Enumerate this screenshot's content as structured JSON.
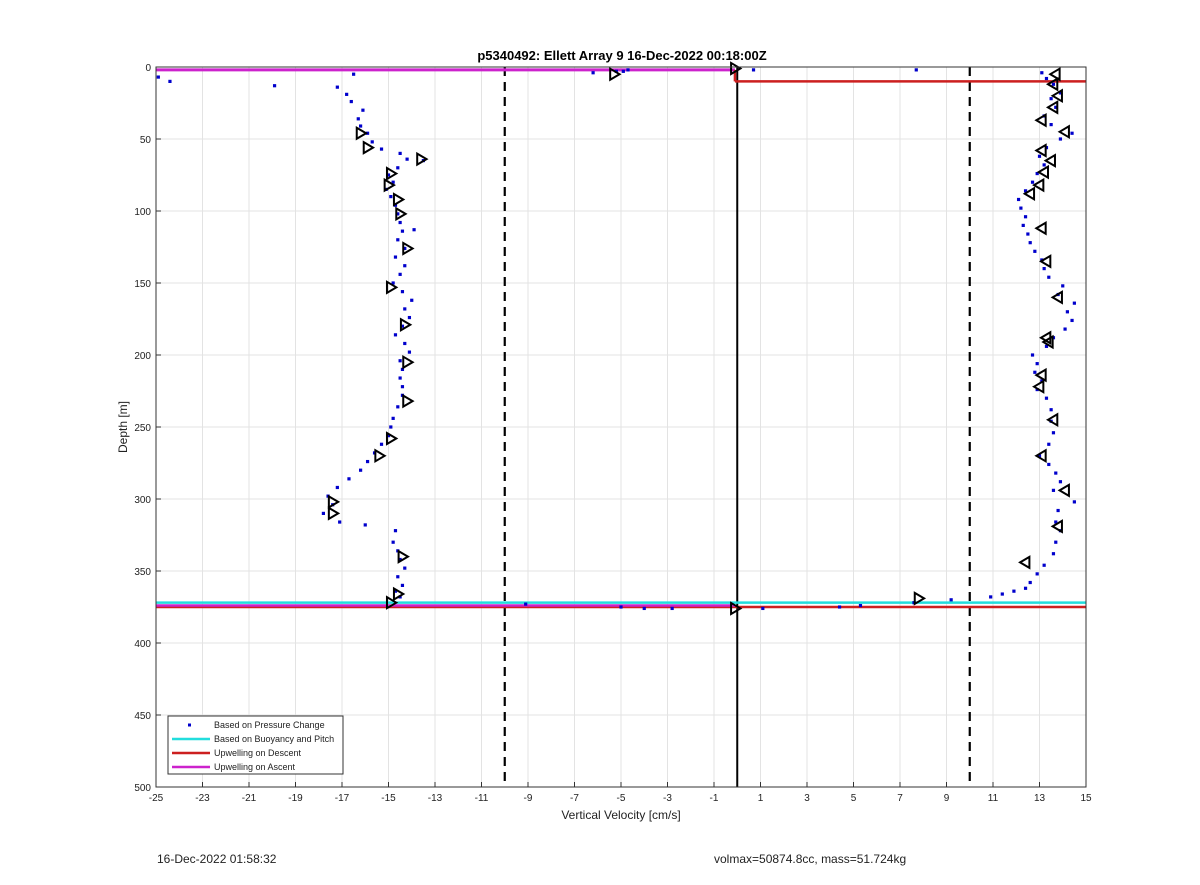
{
  "chart_data": {
    "type": "scatter",
    "title": "p5340492: Ellett Array 9 16-Dec-2022 00:18:00Z",
    "xlabel": "Vertical Velocity [cm/s]",
    "ylabel": "Depth [m]",
    "xlim": [
      -25,
      15
    ],
    "ylim": [
      0,
      500
    ],
    "y_reversed": true,
    "grid": true,
    "legend_position": "bottom-left",
    "xticks": [
      -25,
      -23,
      -21,
      -19,
      -17,
      -15,
      -13,
      -11,
      -9,
      -7,
      -5,
      -3,
      -1,
      1,
      3,
      5,
      7,
      9,
      11,
      13,
      15
    ],
    "yticks": [
      0,
      50,
      100,
      150,
      200,
      250,
      300,
      350,
      400,
      450,
      500
    ],
    "legend": [
      {
        "name": "Based on Pressure Change",
        "color": "#0000cc",
        "style": "dot"
      },
      {
        "name": "Based on Buoyancy and Pitch",
        "color": "#22dddd",
        "style": "line"
      },
      {
        "name": "Upwelling on Descent",
        "color": "#cc1f1f",
        "style": "line"
      },
      {
        "name": "Upwelling on Ascent",
        "color": "#cc22cc",
        "style": "line"
      }
    ],
    "reference_lines": [
      {
        "x": -10,
        "style": "dashed",
        "color": "#000000"
      },
      {
        "x": 10,
        "style": "dashed",
        "color": "#000000"
      },
      {
        "x": 0,
        "style": "solid",
        "color": "#000000"
      }
    ],
    "descent_points": [
      [
        -16.5,
        5
      ],
      [
        -17.2,
        14
      ],
      [
        -16.8,
        19
      ],
      [
        -16.6,
        24
      ],
      [
        -16.1,
        30
      ],
      [
        -16.3,
        36
      ],
      [
        -16.2,
        41
      ],
      [
        -15.9,
        46
      ],
      [
        -15.7,
        52
      ],
      [
        -15.3,
        57
      ],
      [
        -14.5,
        60
      ],
      [
        -14.2,
        64
      ],
      [
        -13.5,
        65
      ],
      [
        -14.6,
        70
      ],
      [
        -15.0,
        75
      ],
      [
        -14.8,
        80
      ],
      [
        -15.1,
        85
      ],
      [
        -14.9,
        90
      ],
      [
        -14.7,
        96
      ],
      [
        -14.6,
        102
      ],
      [
        -14.5,
        108
      ],
      [
        -14.4,
        114
      ],
      [
        -13.9,
        113
      ],
      [
        -14.6,
        120
      ],
      [
        -14.3,
        126
      ],
      [
        -14.7,
        132
      ],
      [
        -14.3,
        138
      ],
      [
        -14.5,
        144
      ],
      [
        -14.8,
        150
      ],
      [
        -14.4,
        156
      ],
      [
        -14.0,
        162
      ],
      [
        -14.3,
        168
      ],
      [
        -14.1,
        174
      ],
      [
        -14.4,
        180
      ],
      [
        -14.7,
        186
      ],
      [
        -14.3,
        192
      ],
      [
        -14.1,
        198
      ],
      [
        -14.5,
        204
      ],
      [
        -14.4,
        210
      ],
      [
        -14.5,
        216
      ],
      [
        -14.4,
        222
      ],
      [
        -14.4,
        228
      ],
      [
        -14.6,
        236
      ],
      [
        -14.8,
        244
      ],
      [
        -14.9,
        250
      ],
      [
        -15.0,
        256
      ],
      [
        -15.3,
        262
      ],
      [
        -15.6,
        268
      ],
      [
        -15.9,
        274
      ],
      [
        -16.2,
        280
      ],
      [
        -16.7,
        286
      ],
      [
        -17.2,
        292
      ],
      [
        -17.6,
        298
      ],
      [
        -17.4,
        304
      ],
      [
        -17.8,
        310
      ],
      [
        -17.1,
        316
      ],
      [
        -16.0,
        318
      ],
      [
        -14.7,
        322
      ],
      [
        -14.8,
        330
      ],
      [
        -14.6,
        336
      ],
      [
        -14.5,
        342
      ],
      [
        -14.3,
        348
      ],
      [
        -14.6,
        354
      ],
      [
        -14.4,
        360
      ],
      [
        -14.7,
        364
      ],
      [
        -14.5,
        368
      ]
    ],
    "ascent_points": [
      [
        12.4,
        362
      ],
      [
        12.6,
        358
      ],
      [
        12.9,
        352
      ],
      [
        13.2,
        346
      ],
      [
        13.6,
        338
      ],
      [
        13.7,
        330
      ],
      [
        13.9,
        322
      ],
      [
        13.7,
        316
      ],
      [
        13.8,
        308
      ],
      [
        14.5,
        302
      ],
      [
        13.6,
        294
      ],
      [
        13.9,
        288
      ],
      [
        13.7,
        282
      ],
      [
        13.4,
        276
      ],
      [
        13.0,
        270
      ],
      [
        13.4,
        262
      ],
      [
        13.6,
        254
      ],
      [
        13.5,
        246
      ],
      [
        13.5,
        238
      ],
      [
        13.3,
        230
      ],
      [
        12.9,
        224
      ],
      [
        13.1,
        218
      ],
      [
        12.8,
        212
      ],
      [
        12.9,
        206
      ],
      [
        12.7,
        200
      ],
      [
        13.3,
        194
      ],
      [
        13.6,
        188
      ],
      [
        14.1,
        182
      ],
      [
        14.4,
        176
      ],
      [
        14.2,
        170
      ],
      [
        14.5,
        164
      ],
      [
        13.8,
        158
      ],
      [
        14.0,
        152
      ],
      [
        13.4,
        146
      ],
      [
        13.2,
        140
      ],
      [
        13.1,
        134
      ],
      [
        12.8,
        128
      ],
      [
        12.6,
        122
      ],
      [
        12.5,
        116
      ],
      [
        12.3,
        110
      ],
      [
        12.4,
        104
      ],
      [
        12.2,
        98
      ],
      [
        12.1,
        92
      ],
      [
        12.4,
        86
      ],
      [
        12.7,
        80
      ],
      [
        12.9,
        74
      ],
      [
        13.2,
        68
      ],
      [
        13.0,
        62
      ],
      [
        13.3,
        56
      ],
      [
        13.9,
        50
      ],
      [
        14.4,
        46
      ],
      [
        13.5,
        40
      ],
      [
        13.2,
        34
      ],
      [
        13.7,
        28
      ],
      [
        13.5,
        22
      ],
      [
        13.9,
        18
      ],
      [
        13.6,
        12
      ],
      [
        13.3,
        8
      ],
      [
        13.1,
        4
      ]
    ],
    "surface_points": [
      [
        -24.9,
        7
      ],
      [
        -24.4,
        10
      ],
      [
        -19.9,
        13
      ],
      [
        -5.2,
        3
      ],
      [
        -4.9,
        3
      ],
      [
        -4.7,
        2
      ],
      [
        -6.2,
        4
      ],
      [
        0.7,
        2
      ],
      [
        7.7,
        2
      ]
    ],
    "bottom_points": [
      [
        -9.1,
        373
      ],
      [
        -5.0,
        375
      ],
      [
        -4.0,
        376
      ],
      [
        -2.8,
        376
      ],
      [
        1.1,
        376
      ],
      [
        4.4,
        375
      ],
      [
        5.3,
        374
      ],
      [
        7.6,
        372
      ],
      [
        9.2,
        370
      ],
      [
        10.9,
        368
      ],
      [
        11.4,
        366
      ],
      [
        11.9,
        364
      ]
    ],
    "descent_markers": [
      [
        -16.2,
        46
      ],
      [
        -15.9,
        56
      ],
      [
        -13.6,
        64
      ],
      [
        -14.9,
        74
      ],
      [
        -15.0,
        82
      ],
      [
        -14.6,
        92
      ],
      [
        -14.5,
        102
      ],
      [
        -14.2,
        126
      ],
      [
        -14.9,
        153
      ],
      [
        -14.3,
        179
      ],
      [
        -14.2,
        205
      ],
      [
        -14.2,
        232
      ],
      [
        -14.9,
        258
      ],
      [
        -15.4,
        270
      ],
      [
        -17.4,
        302
      ],
      [
        -17.4,
        310
      ],
      [
        -14.4,
        340
      ],
      [
        -14.6,
        366
      ],
      [
        -14.9,
        372
      ],
      [
        -5.3,
        5
      ],
      [
        -0.1,
        1
      ],
      [
        7.8,
        369
      ],
      [
        -0.1,
        376
      ]
    ],
    "ascent_markers": [
      [
        13.7,
        5
      ],
      [
        13.6,
        12
      ],
      [
        13.8,
        20
      ],
      [
        13.6,
        28
      ],
      [
        13.1,
        37
      ],
      [
        14.1,
        45
      ],
      [
        13.1,
        58
      ],
      [
        13.5,
        65
      ],
      [
        13.2,
        73
      ],
      [
        13.0,
        82
      ],
      [
        12.6,
        88
      ],
      [
        13.1,
        112
      ],
      [
        13.3,
        135
      ],
      [
        13.8,
        160
      ],
      [
        13.3,
        188
      ],
      [
        13.4,
        191
      ],
      [
        13.1,
        214
      ],
      [
        13.0,
        222
      ],
      [
        13.6,
        245
      ],
      [
        13.1,
        270
      ],
      [
        14.1,
        294
      ],
      [
        13.8,
        319
      ],
      [
        12.4,
        344
      ]
    ],
    "ascent_line": {
      "x_from": -25,
      "x_to": -0.1,
      "y": 2
    },
    "descent_line": {
      "x_from": -0.1,
      "x_to": 15,
      "y": 10
    },
    "bottom_lines": [
      {
        "x_from": -25,
        "x_to": 15,
        "y": 372,
        "color": "#22dddd"
      },
      {
        "x_from": -25,
        "x_to": 15,
        "y": 375,
        "color": "#cc1f1f"
      },
      {
        "x_from": -25,
        "x_to": -0.1,
        "y": 374,
        "color": "#cc22cc"
      }
    ]
  },
  "footer": {
    "timestamp": "16-Dec-2022 01:58:32",
    "volmax": "volmax=50874.8cc, mass=51.724kg"
  }
}
